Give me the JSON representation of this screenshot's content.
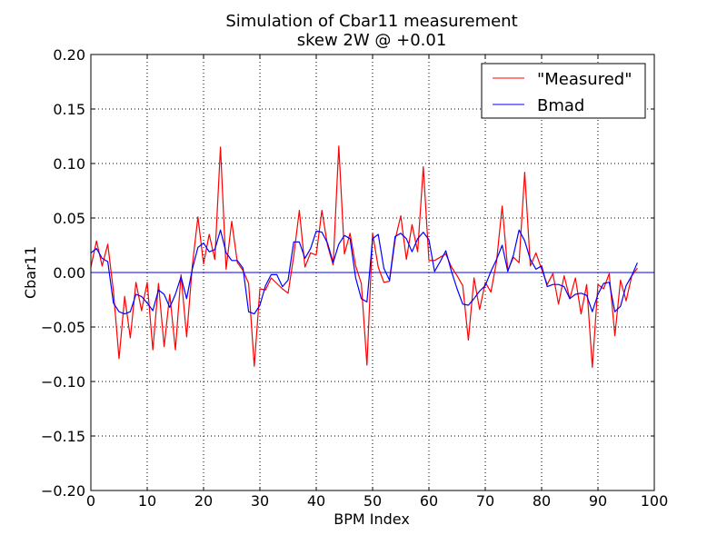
{
  "chart_data": {
    "type": "line",
    "title": "Simulation of Cbar11 measurement",
    "subtitle": "skew 2W @ +0.01",
    "xlabel": "BPM Index",
    "ylabel": "Cbar11",
    "xlim": [
      0,
      100
    ],
    "ylim": [
      -0.2,
      0.2
    ],
    "x_ticks": [
      "0",
      "10",
      "20",
      "30",
      "40",
      "50",
      "60",
      "70",
      "80",
      "90",
      "100"
    ],
    "y_ticks": [
      "−0.20",
      "−0.15",
      "−0.10",
      "−0.05",
      "0.00",
      "0.05",
      "0.10",
      "0.15",
      "0.20"
    ],
    "grid": true,
    "legend_position": "top-right",
    "zero_line": 0,
    "series": [
      {
        "name": "\"Measured\"",
        "color": "#ff0000",
        "x": [
          0,
          1,
          2,
          3,
          4,
          5,
          6,
          7,
          8,
          9,
          10,
          11,
          12,
          13,
          14,
          15,
          16,
          17,
          18,
          19,
          20,
          21,
          22,
          23,
          24,
          25,
          26,
          27,
          28,
          29,
          30,
          31,
          32,
          33,
          34,
          35,
          36,
          37,
          38,
          39,
          40,
          41,
          42,
          43,
          44,
          45,
          46,
          47,
          48,
          49,
          50,
          51,
          52,
          53,
          54,
          55,
          56,
          57,
          58,
          59,
          60,
          61,
          62,
          63,
          64,
          65,
          66,
          67,
          68,
          69,
          70,
          71,
          72,
          73,
          74,
          75,
          76,
          77,
          78,
          79,
          80,
          81,
          82,
          83,
          84,
          85,
          86,
          87,
          88,
          89,
          90,
          91,
          92,
          93,
          94,
          95,
          96,
          97
        ],
        "values": [
          0.005,
          0.029,
          0.006,
          0.026,
          -0.017,
          -0.079,
          -0.022,
          -0.06,
          -0.009,
          -0.035,
          -0.009,
          -0.071,
          -0.01,
          -0.068,
          -0.02,
          -0.071,
          -0.002,
          -0.059,
          0.006,
          0.051,
          0.008,
          0.035,
          0.012,
          0.115,
          0.003,
          0.047,
          0.009,
          0.002,
          -0.01,
          -0.086,
          -0.015,
          -0.016,
          -0.005,
          -0.01,
          -0.015,
          -0.019,
          0.015,
          0.057,
          0.005,
          0.018,
          0.016,
          0.057,
          0.025,
          0.007,
          0.116,
          0.017,
          0.036,
          0.006,
          -0.01,
          -0.085,
          0.036,
          0.005,
          -0.009,
          -0.008,
          0.03,
          0.052,
          0.012,
          0.044,
          0.019,
          0.097,
          0.011,
          0.011,
          0.014,
          0.017,
          0.005,
          -0.003,
          -0.012,
          -0.062,
          -0.005,
          -0.034,
          -0.009,
          -0.018,
          0.01,
          0.061,
          0.002,
          0.014,
          0.009,
          0.092,
          0.006,
          0.018,
          0.003,
          -0.011,
          -0.001,
          -0.029,
          -0.003,
          -0.024,
          -0.005,
          -0.038,
          -0.011,
          -0.087,
          -0.011,
          -0.015,
          -0.001,
          -0.058,
          -0.007,
          -0.026,
          -0.003,
          0.004
        ]
      },
      {
        "name": "Bmad",
        "color": "#0000ff",
        "x": [
          0,
          1,
          2,
          3,
          4,
          5,
          6,
          7,
          8,
          9,
          10,
          11,
          12,
          13,
          14,
          15,
          16,
          17,
          18,
          19,
          20,
          21,
          22,
          23,
          24,
          25,
          26,
          27,
          28,
          29,
          30,
          31,
          32,
          33,
          34,
          35,
          36,
          37,
          38,
          39,
          40,
          41,
          42,
          43,
          44,
          45,
          46,
          47,
          48,
          49,
          50,
          51,
          52,
          53,
          54,
          55,
          56,
          57,
          58,
          59,
          60,
          61,
          62,
          63,
          64,
          65,
          66,
          67,
          68,
          69,
          70,
          71,
          72,
          73,
          74,
          75,
          76,
          77,
          78,
          79,
          80,
          81,
          82,
          83,
          84,
          85,
          86,
          87,
          88,
          89,
          90,
          91,
          92,
          93,
          94,
          95,
          96,
          97
        ],
        "values": [
          0.018,
          0.022,
          0.013,
          0.01,
          -0.028,
          -0.036,
          -0.038,
          -0.036,
          -0.02,
          -0.022,
          -0.028,
          -0.035,
          -0.016,
          -0.02,
          -0.032,
          -0.02,
          -0.004,
          -0.024,
          0.003,
          0.023,
          0.027,
          0.019,
          0.021,
          0.039,
          0.018,
          0.011,
          0.011,
          0.004,
          -0.036,
          -0.038,
          -0.03,
          -0.012,
          -0.002,
          -0.002,
          -0.013,
          -0.007,
          0.028,
          0.028,
          0.013,
          0.022,
          0.038,
          0.037,
          0.027,
          0.009,
          0.026,
          0.034,
          0.031,
          -0.005,
          -0.024,
          -0.027,
          0.031,
          0.035,
          0.004,
          -0.007,
          0.033,
          0.036,
          0.031,
          0.019,
          0.031,
          0.037,
          0.03,
          0.001,
          0.01,
          0.02,
          0.001,
          -0.015,
          -0.029,
          -0.03,
          -0.024,
          -0.017,
          -0.012,
          0.001,
          0.012,
          0.025,
          0.001,
          0.016,
          0.039,
          0.029,
          0.012,
          0.003,
          0.006,
          -0.013,
          -0.011,
          -0.011,
          -0.013,
          -0.024,
          -0.02,
          -0.019,
          -0.021,
          -0.036,
          -0.02,
          -0.01,
          -0.009,
          -0.036,
          -0.031,
          -0.012,
          -0.003,
          0.009
        ]
      }
    ]
  }
}
